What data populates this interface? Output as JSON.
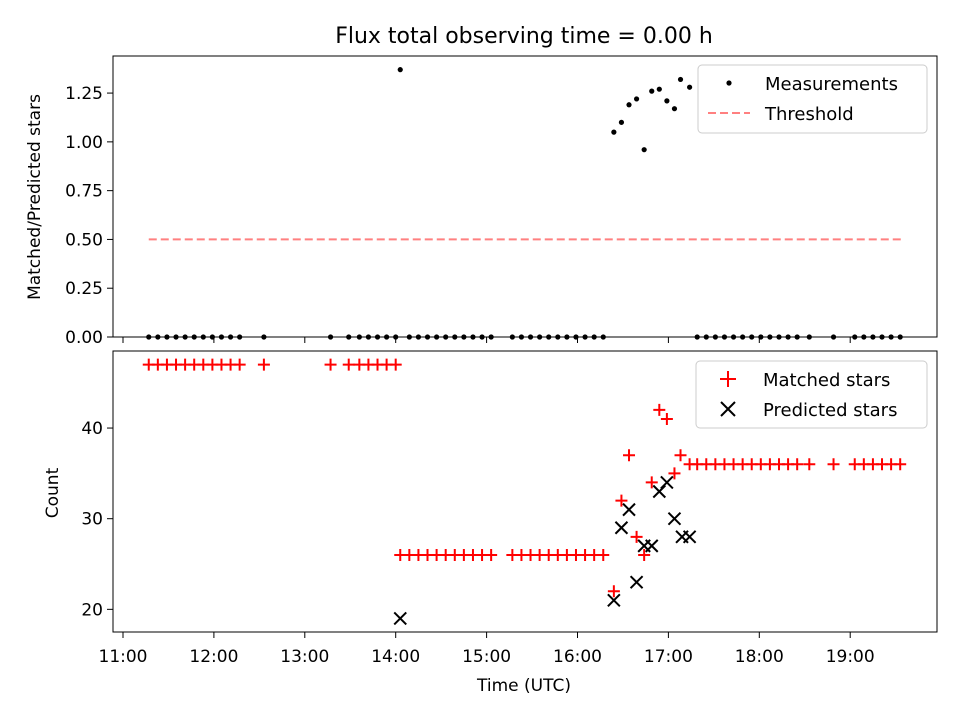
{
  "chart_data": [
    {
      "type": "scatter",
      "title": "Flux total observing time = 0.00 h",
      "xlabel": "",
      "ylabel": "Matched/Predicted stars",
      "ylim": [
        0,
        1.44
      ],
      "yticks": [
        0,
        0.25,
        0.5,
        0.75,
        1.0,
        1.25
      ],
      "ytick_labels": [
        "0.00",
        "0.25",
        "0.50",
        "0.75",
        "1.00",
        "1.25"
      ],
      "legend": {
        "placement": "top-right",
        "entries": [
          "Measurements",
          "Threshold"
        ]
      },
      "threshold": {
        "name": "Threshold",
        "y": 0.5,
        "x_start": "11:17",
        "x_end": "19:35",
        "color": "#ff8080"
      },
      "series": [
        {
          "name": "Measurements",
          "color": "#000000",
          "points": [
            [
              "11:17",
              0
            ],
            [
              "11:23",
              0
            ],
            [
              "11:29",
              0
            ],
            [
              "11:35",
              0
            ],
            [
              "11:41",
              0
            ],
            [
              "11:47",
              0
            ],
            [
              "11:53",
              0
            ],
            [
              "11:59",
              0
            ],
            [
              "12:05",
              0
            ],
            [
              "12:11",
              0
            ],
            [
              "12:17",
              0
            ],
            [
              "12:33",
              0
            ],
            [
              "13:17",
              0
            ],
            [
              "13:29",
              0
            ],
            [
              "13:36",
              0
            ],
            [
              "13:42",
              0
            ],
            [
              "13:48",
              0
            ],
            [
              "13:54",
              0
            ],
            [
              "14:00",
              0
            ],
            [
              "14:03",
              1.37
            ],
            [
              "14:09",
              0
            ],
            [
              "14:15",
              0
            ],
            [
              "14:21",
              0
            ],
            [
              "14:27",
              0
            ],
            [
              "14:33",
              0
            ],
            [
              "14:39",
              0
            ],
            [
              "14:45",
              0
            ],
            [
              "14:51",
              0
            ],
            [
              "14:57",
              0
            ],
            [
              "15:03",
              0
            ],
            [
              "15:17",
              0
            ],
            [
              "15:23",
              0
            ],
            [
              "15:29",
              0
            ],
            [
              "15:35",
              0
            ],
            [
              "15:41",
              0
            ],
            [
              "15:47",
              0
            ],
            [
              "15:53",
              0
            ],
            [
              "15:59",
              0
            ],
            [
              "16:05",
              0
            ],
            [
              "16:11",
              0
            ],
            [
              "16:17",
              0
            ],
            [
              "16:24",
              1.05
            ],
            [
              "16:29",
              1.1
            ],
            [
              "16:34",
              1.19
            ],
            [
              "16:39",
              1.22
            ],
            [
              "16:44",
              0.96
            ],
            [
              "16:49",
              1.26
            ],
            [
              "16:54",
              1.27
            ],
            [
              "16:59",
              1.21
            ],
            [
              "17:04",
              1.17
            ],
            [
              "17:08",
              1.32
            ],
            [
              "17:14",
              1.28
            ],
            [
              "17:19",
              0
            ],
            [
              "17:25",
              0
            ],
            [
              "17:31",
              0
            ],
            [
              "17:37",
              0
            ],
            [
              "17:43",
              0
            ],
            [
              "17:49",
              0
            ],
            [
              "17:55",
              0
            ],
            [
              "18:01",
              0
            ],
            [
              "18:07",
              0
            ],
            [
              "18:13",
              0
            ],
            [
              "18:19",
              0
            ],
            [
              "18:25",
              0
            ],
            [
              "18:33",
              0
            ],
            [
              "18:49",
              0
            ],
            [
              "19:03",
              0
            ],
            [
              "19:09",
              0
            ],
            [
              "19:15",
              0
            ],
            [
              "19:21",
              0
            ],
            [
              "19:27",
              0
            ],
            [
              "19:33",
              0
            ]
          ]
        }
      ]
    },
    {
      "type": "scatter",
      "title": "",
      "xlabel": "Time (UTC)",
      "ylabel": "Count",
      "xlim": [
        "11:00",
        "20:00"
      ],
      "xticks": [
        "11:00",
        "12:00",
        "13:00",
        "14:00",
        "15:00",
        "16:00",
        "17:00",
        "18:00",
        "19:00"
      ],
      "ylim": [
        17.5,
        48.5
      ],
      "yticks": [
        20,
        30,
        40
      ],
      "legend": {
        "placement": "top-right",
        "entries": [
          "Matched stars",
          "Predicted stars"
        ]
      },
      "series": [
        {
          "name": "Matched stars",
          "marker": "+",
          "color": "#ff0000",
          "points": [
            [
              "11:17",
              47
            ],
            [
              "11:23",
              47
            ],
            [
              "11:29",
              47
            ],
            [
              "11:35",
              47
            ],
            [
              "11:41",
              47
            ],
            [
              "11:47",
              47
            ],
            [
              "11:53",
              47
            ],
            [
              "11:59",
              47
            ],
            [
              "12:05",
              47
            ],
            [
              "12:11",
              47
            ],
            [
              "12:17",
              47
            ],
            [
              "12:33",
              47
            ],
            [
              "13:17",
              47
            ],
            [
              "13:29",
              47
            ],
            [
              "13:36",
              47
            ],
            [
              "13:42",
              47
            ],
            [
              "13:48",
              47
            ],
            [
              "13:54",
              47
            ],
            [
              "14:00",
              47
            ],
            [
              "14:03",
              26
            ],
            [
              "14:09",
              26
            ],
            [
              "14:15",
              26
            ],
            [
              "14:21",
              26
            ],
            [
              "14:27",
              26
            ],
            [
              "14:33",
              26
            ],
            [
              "14:39",
              26
            ],
            [
              "14:45",
              26
            ],
            [
              "14:51",
              26
            ],
            [
              "14:57",
              26
            ],
            [
              "15:03",
              26
            ],
            [
              "15:17",
              26
            ],
            [
              "15:23",
              26
            ],
            [
              "15:29",
              26
            ],
            [
              "15:35",
              26
            ],
            [
              "15:41",
              26
            ],
            [
              "15:47",
              26
            ],
            [
              "15:53",
              26
            ],
            [
              "15:59",
              26
            ],
            [
              "16:05",
              26
            ],
            [
              "16:11",
              26
            ],
            [
              "16:17",
              26
            ],
            [
              "16:24",
              22
            ],
            [
              "16:29",
              32
            ],
            [
              "16:34",
              37
            ],
            [
              "16:39",
              28
            ],
            [
              "16:44",
              26
            ],
            [
              "16:49",
              34
            ],
            [
              "16:54",
              42
            ],
            [
              "16:59",
              41
            ],
            [
              "17:04",
              35
            ],
            [
              "17:08",
              37
            ],
            [
              "17:14",
              36
            ],
            [
              "17:19",
              36
            ],
            [
              "17:25",
              36
            ],
            [
              "17:31",
              36
            ],
            [
              "17:37",
              36
            ],
            [
              "17:43",
              36
            ],
            [
              "17:49",
              36
            ],
            [
              "17:55",
              36
            ],
            [
              "18:01",
              36
            ],
            [
              "18:07",
              36
            ],
            [
              "18:13",
              36
            ],
            [
              "18:19",
              36
            ],
            [
              "18:25",
              36
            ],
            [
              "18:33",
              36
            ],
            [
              "18:49",
              36
            ],
            [
              "19:03",
              36
            ],
            [
              "19:09",
              36
            ],
            [
              "19:15",
              36
            ],
            [
              "19:21",
              36
            ],
            [
              "19:27",
              36
            ],
            [
              "19:33",
              36
            ]
          ]
        },
        {
          "name": "Predicted stars",
          "marker": "x",
          "color": "#000000",
          "points": [
            [
              "14:03",
              19
            ],
            [
              "16:24",
              21
            ],
            [
              "16:29",
              29
            ],
            [
              "16:34",
              31
            ],
            [
              "16:39",
              23
            ],
            [
              "16:44",
              27
            ],
            [
              "16:49",
              27
            ],
            [
              "16:54",
              33
            ],
            [
              "16:59",
              34
            ],
            [
              "17:04",
              30
            ],
            [
              "17:09",
              28
            ],
            [
              "17:14",
              28
            ]
          ]
        }
      ]
    }
  ]
}
